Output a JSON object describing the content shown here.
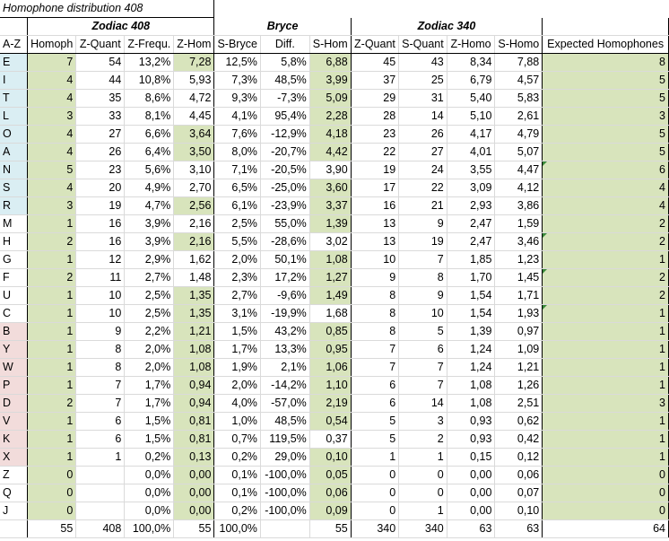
{
  "sheet_title": "Homophone distribution 408",
  "groups": {
    "zodiac408": "Zodiac 408",
    "bryce": "Bryce",
    "zodiac340": "Zodiac 340"
  },
  "headers": [
    "A-Z",
    "Homoph",
    "Z-Quant",
    "Z-Frequ.",
    "Z-Hom",
    "S-Bryce",
    "Diff.",
    "S-Hom",
    "Z-Quant",
    "S-Quant",
    "Z-Homo",
    "S-Homo",
    "Expected Homophones"
  ],
  "rows": [
    {
      "letter": "E",
      "homoph": "7",
      "zq": "54",
      "zf": "13,2%",
      "zh": "7,28",
      "sb": "12,5%",
      "diff": "5,8%",
      "sh": "6,88",
      "zq340": "45",
      "sq": "43",
      "zho": "8,34",
      "sho": "7,88",
      "exp": "8"
    },
    {
      "letter": "I",
      "homoph": "4",
      "zq": "44",
      "zf": "10,8%",
      "zh": "5,93",
      "sb": "7,3%",
      "diff": "48,5%",
      "sh": "3,99",
      "zq340": "37",
      "sq": "25",
      "zho": "6,79",
      "sho": "4,57",
      "exp": "5"
    },
    {
      "letter": "T",
      "homoph": "4",
      "zq": "35",
      "zf": "8,6%",
      "zh": "4,72",
      "sb": "9,3%",
      "diff": "-7,3%",
      "sh": "5,09",
      "zq340": "29",
      "sq": "31",
      "zho": "5,40",
      "sho": "5,83",
      "exp": "5"
    },
    {
      "letter": "L",
      "homoph": "3",
      "zq": "33",
      "zf": "8,1%",
      "zh": "4,45",
      "sb": "4,1%",
      "diff": "95,4%",
      "sh": "2,28",
      "zq340": "28",
      "sq": "14",
      "zho": "5,10",
      "sho": "2,61",
      "exp": "3"
    },
    {
      "letter": "O",
      "homoph": "4",
      "zq": "27",
      "zf": "6,6%",
      "zh": "3,64",
      "sb": "7,6%",
      "diff": "-12,9%",
      "sh": "4,18",
      "zq340": "23",
      "sq": "26",
      "zho": "4,17",
      "sho": "4,79",
      "exp": "5"
    },
    {
      "letter": "A",
      "homoph": "4",
      "zq": "26",
      "zf": "6,4%",
      "zh": "3,50",
      "sb": "8,0%",
      "diff": "-20,7%",
      "sh": "4,42",
      "zq340": "22",
      "sq": "27",
      "zho": "4,01",
      "sho": "5,07",
      "exp": "5"
    },
    {
      "letter": "N",
      "homoph": "5",
      "zq": "23",
      "zf": "5,6%",
      "zh": "3,10",
      "sb": "7,1%",
      "diff": "-20,5%",
      "sh": "3,90",
      "zq340": "19",
      "sq": "24",
      "zho": "3,55",
      "sho": "4,47",
      "exp": "6"
    },
    {
      "letter": "S",
      "homoph": "4",
      "zq": "20",
      "zf": "4,9%",
      "zh": "2,70",
      "sb": "6,5%",
      "diff": "-25,0%",
      "sh": "3,60",
      "zq340": "17",
      "sq": "22",
      "zho": "3,09",
      "sho": "4,12",
      "exp": "4"
    },
    {
      "letter": "R",
      "homoph": "3",
      "zq": "19",
      "zf": "4,7%",
      "zh": "2,56",
      "sb": "6,1%",
      "diff": "-23,9%",
      "sh": "3,37",
      "zq340": "16",
      "sq": "21",
      "zho": "2,93",
      "sho": "3,86",
      "exp": "4"
    },
    {
      "letter": "M",
      "homoph": "1",
      "zq": "16",
      "zf": "3,9%",
      "zh": "2,16",
      "sb": "2,5%",
      "diff": "55,0%",
      "sh": "1,39",
      "zq340": "13",
      "sq": "9",
      "zho": "2,47",
      "sho": "1,59",
      "exp": "2"
    },
    {
      "letter": "H",
      "homoph": "2",
      "zq": "16",
      "zf": "3,9%",
      "zh": "2,16",
      "sb": "5,5%",
      "diff": "-28,6%",
      "sh": "3,02",
      "zq340": "13",
      "sq": "19",
      "zho": "2,47",
      "sho": "3,46",
      "exp": "2"
    },
    {
      "letter": "G",
      "homoph": "1",
      "zq": "12",
      "zf": "2,9%",
      "zh": "1,62",
      "sb": "2,0%",
      "diff": "50,1%",
      "sh": "1,08",
      "zq340": "10",
      "sq": "7",
      "zho": "1,85",
      "sho": "1,23",
      "exp": "1"
    },
    {
      "letter": "F",
      "homoph": "2",
      "zq": "11",
      "zf": "2,7%",
      "zh": "1,48",
      "sb": "2,3%",
      "diff": "17,2%",
      "sh": "1,27",
      "zq340": "9",
      "sq": "8",
      "zho": "1,70",
      "sho": "1,45",
      "exp": "2"
    },
    {
      "letter": "U",
      "homoph": "1",
      "zq": "10",
      "zf": "2,5%",
      "zh": "1,35",
      "sb": "2,7%",
      "diff": "-9,6%",
      "sh": "1,49",
      "zq340": "8",
      "sq": "9",
      "zho": "1,54",
      "sho": "1,71",
      "exp": "2"
    },
    {
      "letter": "C",
      "homoph": "1",
      "zq": "10",
      "zf": "2,5%",
      "zh": "1,35",
      "sb": "3,1%",
      "diff": "-19,9%",
      "sh": "1,68",
      "zq340": "8",
      "sq": "10",
      "zho": "1,54",
      "sho": "1,93",
      "exp": "1"
    },
    {
      "letter": "B",
      "homoph": "1",
      "zq": "9",
      "zf": "2,2%",
      "zh": "1,21",
      "sb": "1,5%",
      "diff": "43,2%",
      "sh": "0,85",
      "zq340": "8",
      "sq": "5",
      "zho": "1,39",
      "sho": "0,97",
      "exp": "1"
    },
    {
      "letter": "Y",
      "homoph": "1",
      "zq": "8",
      "zf": "2,0%",
      "zh": "1,08",
      "sb": "1,7%",
      "diff": "13,3%",
      "sh": "0,95",
      "zq340": "7",
      "sq": "6",
      "zho": "1,24",
      "sho": "1,09",
      "exp": "1"
    },
    {
      "letter": "W",
      "homoph": "1",
      "zq": "8",
      "zf": "2,0%",
      "zh": "1,08",
      "sb": "1,9%",
      "diff": "2,1%",
      "sh": "1,06",
      "zq340": "7",
      "sq": "7",
      "zho": "1,24",
      "sho": "1,21",
      "exp": "1"
    },
    {
      "letter": "P",
      "homoph": "1",
      "zq": "7",
      "zf": "1,7%",
      "zh": "0,94",
      "sb": "2,0%",
      "diff": "-14,2%",
      "sh": "1,10",
      "zq340": "6",
      "sq": "7",
      "zho": "1,08",
      "sho": "1,26",
      "exp": "1"
    },
    {
      "letter": "D",
      "homoph": "2",
      "zq": "7",
      "zf": "1,7%",
      "zh": "0,94",
      "sb": "4,0%",
      "diff": "-57,0%",
      "sh": "2,19",
      "zq340": "6",
      "sq": "14",
      "zho": "1,08",
      "sho": "2,51",
      "exp": "3"
    },
    {
      "letter": "V",
      "homoph": "1",
      "zq": "6",
      "zf": "1,5%",
      "zh": "0,81",
      "sb": "1,0%",
      "diff": "48,5%",
      "sh": "0,54",
      "zq340": "5",
      "sq": "3",
      "zho": "0,93",
      "sho": "0,62",
      "exp": "1"
    },
    {
      "letter": "K",
      "homoph": "1",
      "zq": "6",
      "zf": "1,5%",
      "zh": "0,81",
      "sb": "0,7%",
      "diff": "119,5%",
      "sh": "0,37",
      "zq340": "5",
      "sq": "2",
      "zho": "0,93",
      "sho": "0,42",
      "exp": "1"
    },
    {
      "letter": "X",
      "homoph": "1",
      "zq": "1",
      "zf": "0,2%",
      "zh": "0,13",
      "sb": "0,2%",
      "diff": "29,0%",
      "sh": "0,10",
      "zq340": "1",
      "sq": "1",
      "zho": "0,15",
      "sho": "0,12",
      "exp": "1"
    },
    {
      "letter": "Z",
      "homoph": "0",
      "zq": "",
      "zf": "0,0%",
      "zh": "0,00",
      "sb": "0,1%",
      "diff": "-100,0%",
      "sh": "0,05",
      "zq340": "0",
      "sq": "0",
      "zho": "0,00",
      "sho": "0,06",
      "exp": "0"
    },
    {
      "letter": "Q",
      "homoph": "0",
      "zq": "",
      "zf": "0,0%",
      "zh": "0,00",
      "sb": "0,1%",
      "diff": "-100,0%",
      "sh": "0,06",
      "zq340": "0",
      "sq": "0",
      "zho": "0,00",
      "sho": "0,07",
      "exp": "0"
    },
    {
      "letter": "J",
      "homoph": "0",
      "zq": "",
      "zf": "0,0%",
      "zh": "0,00",
      "sb": "0,2%",
      "diff": "-100,0%",
      "sh": "0,09",
      "zq340": "0",
      "sq": "1",
      "zho": "0,00",
      "sho": "0,10",
      "exp": "0"
    }
  ],
  "totals": {
    "letter": "",
    "homoph": "55",
    "zq": "408",
    "zf": "100,0%",
    "zh": "55",
    "sb": "100,0%",
    "diff": "",
    "sh": "55",
    "zq340": "340",
    "sq": "340",
    "zho": "63",
    "sho": "63",
    "exp": "64"
  },
  "colors": {
    "green": "#d8e4bc",
    "blue": "#daeef3",
    "pink": "#f2dcdb",
    "flag": "#3a8a3a"
  }
}
